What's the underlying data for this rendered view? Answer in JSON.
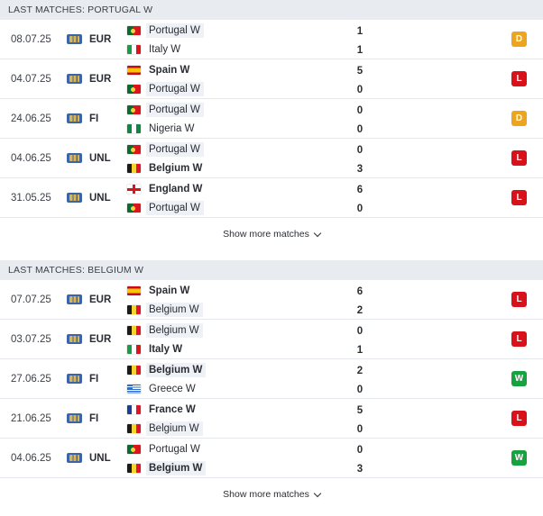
{
  "sections": [
    {
      "title": "LAST MATCHES: PORTUGAL W",
      "show_more": "Show more matches",
      "matches": [
        {
          "date": "08.07.25",
          "competition": "EUR",
          "home": {
            "name": "Portugal W",
            "flag": "pt",
            "highlight": true,
            "bold": false
          },
          "away": {
            "name": "Italy W",
            "flag": "it",
            "highlight": false,
            "bold": false
          },
          "home_score": "1",
          "away_score": "1",
          "result": "D"
        },
        {
          "date": "04.07.25",
          "competition": "EUR",
          "home": {
            "name": "Spain W",
            "flag": "es",
            "highlight": false,
            "bold": true
          },
          "away": {
            "name": "Portugal W",
            "flag": "pt",
            "highlight": true,
            "bold": false
          },
          "home_score": "5",
          "away_score": "0",
          "result": "L"
        },
        {
          "date": "24.06.25",
          "competition": "FI",
          "home": {
            "name": "Portugal W",
            "flag": "pt",
            "highlight": true,
            "bold": false
          },
          "away": {
            "name": "Nigeria W",
            "flag": "ng",
            "highlight": false,
            "bold": false
          },
          "home_score": "0",
          "away_score": "0",
          "result": "D"
        },
        {
          "date": "04.06.25",
          "competition": "UNL",
          "home": {
            "name": "Portugal W",
            "flag": "pt",
            "highlight": true,
            "bold": false
          },
          "away": {
            "name": "Belgium W",
            "flag": "be",
            "highlight": false,
            "bold": true
          },
          "home_score": "0",
          "away_score": "3",
          "result": "L"
        },
        {
          "date": "31.05.25",
          "competition": "UNL",
          "home": {
            "name": "England W",
            "flag": "en",
            "highlight": false,
            "bold": true
          },
          "away": {
            "name": "Portugal W",
            "flag": "pt",
            "highlight": true,
            "bold": false
          },
          "home_score": "6",
          "away_score": "0",
          "result": "L"
        }
      ]
    },
    {
      "title": "LAST MATCHES: BELGIUM W",
      "show_more": "Show more matches",
      "matches": [
        {
          "date": "07.07.25",
          "competition": "EUR",
          "home": {
            "name": "Spain W",
            "flag": "es",
            "highlight": false,
            "bold": true
          },
          "away": {
            "name": "Belgium W",
            "flag": "be",
            "highlight": true,
            "bold": false
          },
          "home_score": "6",
          "away_score": "2",
          "result": "L"
        },
        {
          "date": "03.07.25",
          "competition": "EUR",
          "home": {
            "name": "Belgium W",
            "flag": "be",
            "highlight": true,
            "bold": false
          },
          "away": {
            "name": "Italy W",
            "flag": "it",
            "highlight": false,
            "bold": true
          },
          "home_score": "0",
          "away_score": "1",
          "result": "L"
        },
        {
          "date": "27.06.25",
          "competition": "FI",
          "home": {
            "name": "Belgium W",
            "flag": "be",
            "highlight": true,
            "bold": true
          },
          "away": {
            "name": "Greece W",
            "flag": "gr",
            "highlight": false,
            "bold": false
          },
          "home_score": "2",
          "away_score": "0",
          "result": "W"
        },
        {
          "date": "21.06.25",
          "competition": "FI",
          "home": {
            "name": "France W",
            "flag": "fr",
            "highlight": false,
            "bold": true
          },
          "away": {
            "name": "Belgium W",
            "flag": "be",
            "highlight": true,
            "bold": false
          },
          "home_score": "5",
          "away_score": "0",
          "result": "L"
        },
        {
          "date": "04.06.25",
          "competition": "UNL",
          "home": {
            "name": "Portugal W",
            "flag": "pt",
            "highlight": false,
            "bold": false
          },
          "away": {
            "name": "Belgium W",
            "flag": "be",
            "highlight": true,
            "bold": true
          },
          "home_score": "0",
          "away_score": "3",
          "result": "W"
        }
      ]
    }
  ]
}
